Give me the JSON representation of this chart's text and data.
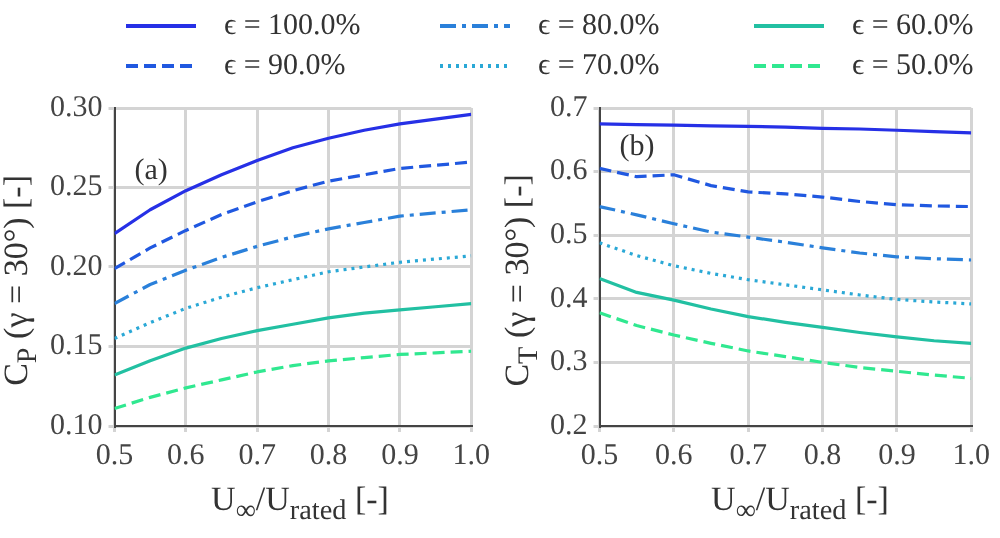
{
  "chart_data": [
    {
      "type": "line",
      "xlabel": "U$_{∞}$/U$_{rated}$ [-]",
      "ylabel": "C$_{P}$ (γ = 30°) [-]",
      "annotations": [
        "(a)"
      ],
      "x": [
        0.5,
        0.55,
        0.6,
        0.65,
        0.7,
        0.75,
        0.8,
        0.85,
        0.9,
        0.95,
        1.0
      ],
      "xlim": [
        0.5,
        1.0
      ],
      "xticks": [
        0.5,
        0.6,
        0.7,
        0.8,
        0.9,
        {
          "value": 1,
          "label": "1.0"
        }
      ],
      "ylim": [
        0.1,
        0.3
      ],
      "yticks": [
        {
          "value": 0.1,
          "label": "0.10"
        },
        0.15,
        {
          "value": 0.2,
          "label": "0.20"
        },
        0.25,
        {
          "value": 0.3,
          "label": "0.30"
        }
      ],
      "grid": true,
      "legend": "top",
      "marker": "none",
      "series": [
        {
          "name": "ϵ = 100.0%",
          "color": "#2630e6",
          "line_style": "solid",
          "values": [
            0.221,
            0.236,
            0.248,
            0.258,
            0.267,
            0.275,
            0.281,
            0.286,
            0.29,
            0.293,
            0.296
          ]
        },
        {
          "name": "ϵ = 90.0%",
          "color": "#2058e0",
          "line_style": "dashed",
          "values": [
            0.199,
            0.212,
            0.223,
            0.233,
            0.241,
            0.248,
            0.254,
            0.258,
            0.262,
            0.264,
            0.266
          ]
        },
        {
          "name": "ϵ = 80.0%",
          "color": "#2a80da",
          "line_style": "dashdot",
          "values": [
            0.177,
            0.189,
            0.198,
            0.206,
            0.213,
            0.219,
            0.224,
            0.228,
            0.232,
            0.234,
            0.236
          ]
        },
        {
          "name": "ϵ = 70.0%",
          "color": "#2aa8d6",
          "line_style": "dotted",
          "values": [
            0.155,
            0.165,
            0.174,
            0.181,
            0.187,
            0.192,
            0.197,
            0.2,
            0.203,
            0.205,
            0.207
          ]
        },
        {
          "name": "ϵ = 60.0%",
          "color": "#22c0a2",
          "line_style": "solid",
          "values": [
            0.132,
            0.141,
            0.149,
            0.155,
            0.16,
            0.164,
            0.168,
            0.171,
            0.173,
            0.175,
            0.177
          ]
        },
        {
          "name": "ϵ = 50.0%",
          "color": "#30e890",
          "line_style": "dashed",
          "values": [
            0.111,
            0.118,
            0.124,
            0.129,
            0.134,
            0.138,
            0.141,
            0.143,
            0.145,
            0.146,
            0.147
          ]
        }
      ]
    },
    {
      "type": "line",
      "xlabel": "U$_{∞}$/U$_{rated}$ [-]",
      "ylabel": "C$_{T}$ (γ = 30°) [-]",
      "annotations": [
        "(b)"
      ],
      "x": [
        0.5,
        0.55,
        0.6,
        0.65,
        0.7,
        0.75,
        0.8,
        0.85,
        0.9,
        0.95,
        1.0
      ],
      "xlim": [
        0.5,
        1.0
      ],
      "xticks": [
        0.5,
        0.6,
        0.7,
        0.8,
        0.9,
        {
          "value": 1,
          "label": "1.0"
        }
      ],
      "ylim": [
        0.2,
        0.7
      ],
      "yticks": [
        0.2,
        0.3,
        0.4,
        0.5,
        0.6,
        0.7
      ],
      "grid": true,
      "marker": "none",
      "series": [
        {
          "color": "#2630e6",
          "line_style": "solid",
          "values": [
            0.675,
            0.674,
            0.673,
            0.672,
            0.671,
            0.67,
            0.668,
            0.667,
            0.665,
            0.663,
            0.661
          ]
        },
        {
          "color": "#2058e0",
          "line_style": "dashed",
          "values": [
            0.605,
            0.592,
            0.595,
            0.578,
            0.568,
            0.565,
            0.56,
            0.553,
            0.548,
            0.546,
            0.545
          ]
        },
        {
          "color": "#2a80da",
          "line_style": "dashdot",
          "values": [
            0.545,
            0.532,
            0.518,
            0.505,
            0.497,
            0.489,
            0.48,
            0.472,
            0.466,
            0.463,
            0.461
          ]
        },
        {
          "color": "#2aa8d6",
          "line_style": "dotted",
          "values": [
            0.488,
            0.468,
            0.452,
            0.44,
            0.43,
            0.422,
            0.414,
            0.406,
            0.399,
            0.395,
            0.392
          ]
        },
        {
          "color": "#22c0a2",
          "line_style": "solid",
          "values": [
            0.432,
            0.41,
            0.398,
            0.384,
            0.372,
            0.363,
            0.355,
            0.347,
            0.34,
            0.334,
            0.33
          ]
        },
        {
          "color": "#30e890",
          "line_style": "dashed",
          "values": [
            0.378,
            0.358,
            0.343,
            0.33,
            0.318,
            0.309,
            0.3,
            0.292,
            0.286,
            0.28,
            0.275
          ]
        }
      ]
    }
  ]
}
